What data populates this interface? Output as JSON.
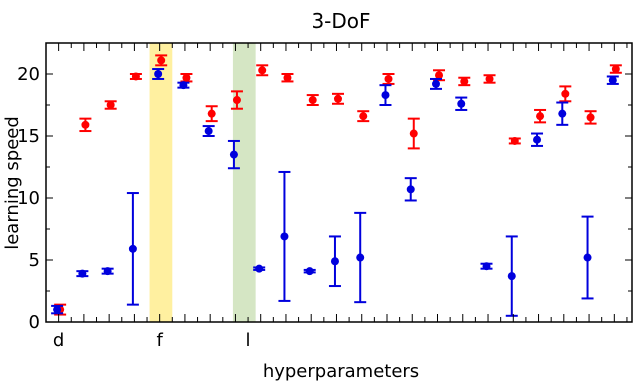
{
  "chart_data": {
    "type": "scatter",
    "title": "3-DoF",
    "xlabel": "hyperparameters",
    "ylabel": "learning speed",
    "ylim": [
      0,
      22.5
    ],
    "xlim": [
      0.5,
      23.7
    ],
    "y_ticks": [
      0,
      5,
      10,
      15,
      20
    ],
    "x_tick_labels": [
      {
        "x": 1,
        "label": "d"
      },
      {
        "x": 5,
        "label": "f"
      },
      {
        "x": 8.5,
        "label": "l"
      }
    ],
    "grid": false,
    "legend": "none",
    "highlight_bands": [
      {
        "x0": 4.6,
        "x1": 5.5,
        "color": "#fff0a0"
      },
      {
        "x0": 7.9,
        "x1": 8.8,
        "color": "#d5e6c4"
      }
    ],
    "colors": {
      "series_red": "#ff0000",
      "series_blue": "#0000dd"
    },
    "series": [
      {
        "color": "red",
        "points": [
          {
            "x": 1,
            "y": 1.0,
            "err": 0.4
          },
          {
            "x": 2,
            "y": 15.9,
            "err": 0.5
          },
          {
            "x": 3,
            "y": 17.5,
            "err": 0.3
          },
          {
            "x": 4,
            "y": 19.8,
            "err": 0.2
          },
          {
            "x": 5,
            "y": 21.1,
            "err": 0.4
          },
          {
            "x": 6,
            "y": 19.7,
            "err": 0.3
          },
          {
            "x": 7,
            "y": 16.8,
            "err": 0.6
          },
          {
            "x": 8,
            "y": 17.9,
            "err": 0.7
          },
          {
            "x": 9,
            "y": 20.3,
            "err": 0.4
          },
          {
            "x": 10,
            "y": 19.7,
            "err": 0.3
          },
          {
            "x": 11,
            "y": 17.9,
            "err": 0.4
          },
          {
            "x": 12,
            "y": 18.0,
            "err": 0.4
          },
          {
            "x": 13,
            "y": 16.6,
            "err": 0.4
          },
          {
            "x": 14,
            "y": 19.6,
            "err": 0.4
          },
          {
            "x": 15,
            "y": 15.2,
            "err": 1.2
          },
          {
            "x": 16,
            "y": 19.9,
            "err": 0.4
          },
          {
            "x": 17,
            "y": 19.4,
            "err": 0.3
          },
          {
            "x": 18,
            "y": 19.6,
            "err": 0.3
          },
          {
            "x": 19,
            "y": 14.6,
            "err": 0.2
          },
          {
            "x": 20,
            "y": 16.6,
            "err": 0.5
          },
          {
            "x": 21,
            "y": 18.4,
            "err": 0.6
          },
          {
            "x": 22,
            "y": 16.5,
            "err": 0.5
          },
          {
            "x": 23,
            "y": 20.4,
            "err": 0.3
          }
        ]
      },
      {
        "color": "blue",
        "points": [
          {
            "x": 1,
            "y": 1.0,
            "err": 0.3
          },
          {
            "x": 2,
            "y": 3.9,
            "err": 0.2
          },
          {
            "x": 3,
            "y": 4.1,
            "err": 0.2
          },
          {
            "x": 4,
            "y": 5.9,
            "err": 4.5
          },
          {
            "x": 5,
            "y": 20.0,
            "err": 0.4
          },
          {
            "x": 6,
            "y": 19.1,
            "err": 0.2
          },
          {
            "x": 7,
            "y": 15.4,
            "err": 0.4
          },
          {
            "x": 8,
            "y": 13.5,
            "err": 1.1
          },
          {
            "x": 9,
            "y": 4.3,
            "err": 0.1
          },
          {
            "x": 10,
            "y": 6.9,
            "err": 5.2
          },
          {
            "x": 11,
            "y": 4.1,
            "err": 0.1
          },
          {
            "x": 12,
            "y": 4.9,
            "err": 2.0
          },
          {
            "x": 13,
            "y": 5.2,
            "err": 3.6
          },
          {
            "x": 14,
            "y": 18.3,
            "err": 0.8
          },
          {
            "x": 15,
            "y": 10.7,
            "err": 0.9
          },
          {
            "x": 16,
            "y": 19.2,
            "err": 0.4
          },
          {
            "x": 17,
            "y": 17.6,
            "err": 0.5
          },
          {
            "x": 18,
            "y": 4.5,
            "err": 0.2
          },
          {
            "x": 19,
            "y": 3.7,
            "err": 3.2
          },
          {
            "x": 20,
            "y": 14.7,
            "err": 0.5
          },
          {
            "x": 21,
            "y": 16.8,
            "err": 0.9
          },
          {
            "x": 22,
            "y": 5.2,
            "err": 3.3
          },
          {
            "x": 23,
            "y": 19.5,
            "err": 0.3
          }
        ]
      }
    ]
  }
}
